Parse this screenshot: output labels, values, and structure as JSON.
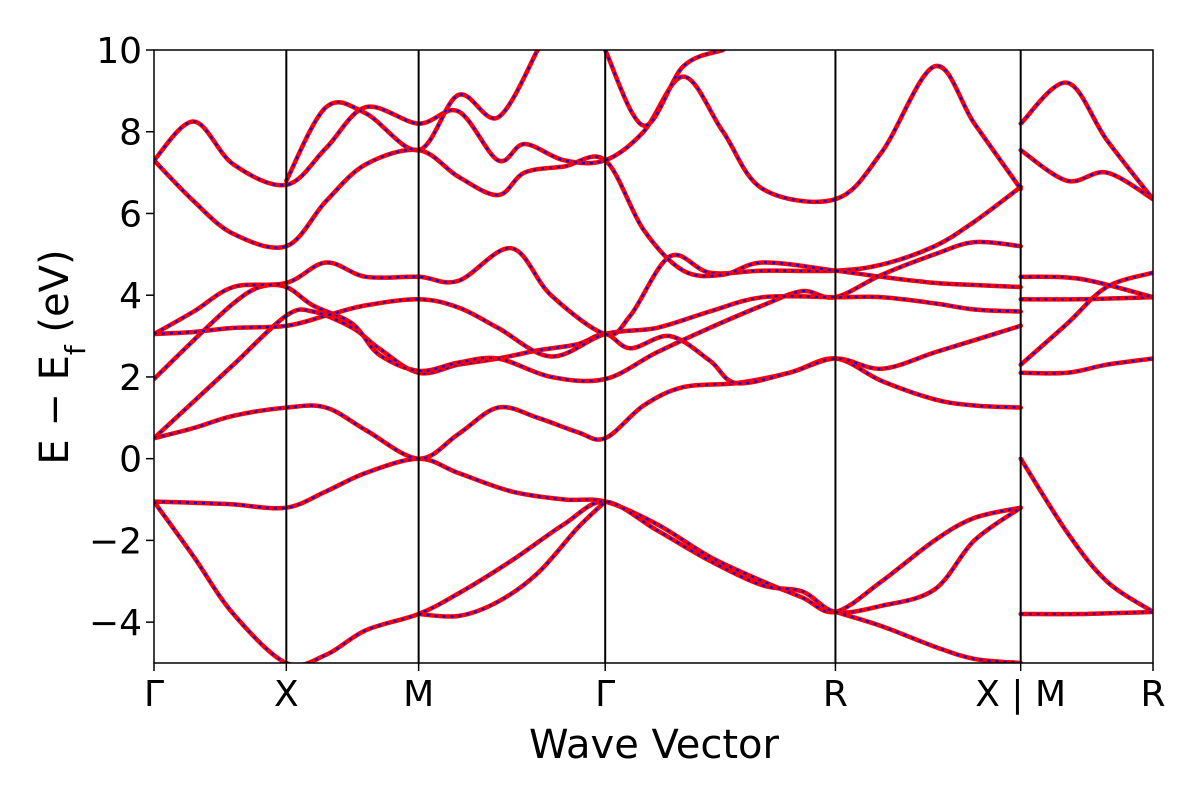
{
  "chart_data": {
    "type": "line",
    "title": "",
    "xlabel": "Wave Vector",
    "ylabel_parts": {
      "main": "E − E",
      "subscript": "f",
      "unit": " (eV)"
    },
    "ylim": [
      -5,
      10
    ],
    "yticks": [
      -4,
      -2,
      0,
      2,
      4,
      6,
      8,
      10
    ],
    "ytick_labels": [
      "−4",
      "−2",
      "0",
      "2",
      "4",
      "6",
      "8",
      "10"
    ],
    "xlim": [
      0,
      7.55
    ],
    "kpoints": [
      {
        "label": "Γ",
        "x": 0
      },
      {
        "label": "X",
        "x": 1.0
      },
      {
        "label": "M",
        "x": 2.0
      },
      {
        "label": "Γ",
        "x": 3.41
      },
      {
        "label": "R",
        "x": 5.15
      },
      {
        "label": "X | M",
        "x": 6.55
      },
      {
        "label": "R",
        "x": 7.55
      }
    ],
    "grid": false,
    "legend": "none",
    "colors": {
      "dft": "#0000ff",
      "fit": "#ff0000",
      "axes": "#000000"
    },
    "series_style": "blue dashed curves overlaid by red solid curves (identical bands)",
    "bands": [
      [
        [
          0,
          -1.05
        ],
        [
          0.3,
          -1.08
        ],
        [
          0.6,
          -1.12
        ],
        [
          1.0,
          -1.2
        ],
        [
          1.3,
          -0.8
        ],
        [
          1.6,
          -0.35
        ],
        [
          2.0,
          0.0
        ],
        [
          2.3,
          -0.35
        ],
        [
          2.7,
          -0.8
        ],
        [
          3.1,
          -1.0
        ],
        [
          3.41,
          -1.05
        ],
        [
          3.8,
          -1.6
        ],
        [
          4.2,
          -2.4
        ],
        [
          4.6,
          -3.0
        ],
        [
          4.9,
          -3.4
        ],
        [
          5.15,
          -3.75
        ],
        [
          5.5,
          -3.0
        ],
        [
          5.9,
          -2.0
        ],
        [
          6.2,
          -1.45
        ],
        [
          6.55,
          -1.2
        ]
      ],
      [
        [
          0,
          -1.05
        ],
        [
          0.3,
          -2.4
        ],
        [
          0.6,
          -3.8
        ],
        [
          1.0,
          -5.0
        ],
        [
          1.3,
          -4.8
        ],
        [
          1.6,
          -4.2
        ],
        [
          2.0,
          -3.8
        ],
        [
          2.3,
          -3.3
        ],
        [
          2.7,
          -2.5
        ],
        [
          3.1,
          -1.6
        ],
        [
          3.41,
          -1.05
        ],
        [
          3.8,
          -1.75
        ],
        [
          4.2,
          -2.5
        ],
        [
          4.6,
          -3.1
        ],
        [
          4.9,
          -3.25
        ],
        [
          5.15,
          -3.75
        ],
        [
          5.5,
          -3.6
        ],
        [
          5.9,
          -3.2
        ],
        [
          6.2,
          -2.0
        ],
        [
          6.55,
          -1.2
        ]
      ],
      [
        [
          2.0,
          -3.8
        ],
        [
          2.3,
          -3.85
        ],
        [
          2.6,
          -3.5
        ],
        [
          2.9,
          -2.8
        ],
        [
          3.2,
          -1.7
        ],
        [
          3.41,
          -1.05
        ]
      ],
      [
        [
          5.15,
          -3.75
        ],
        [
          5.5,
          -4.1
        ],
        [
          5.9,
          -4.6
        ],
        [
          6.2,
          -4.9
        ],
        [
          6.55,
          -5.0
        ]
      ],
      [
        [
          0,
          0.5
        ],
        [
          0.3,
          0.75
        ],
        [
          0.6,
          1.05
        ],
        [
          1.0,
          1.25
        ],
        [
          1.3,
          1.25
        ],
        [
          1.6,
          0.7
        ],
        [
          2.0,
          0.0
        ],
        [
          2.3,
          0.6
        ],
        [
          2.6,
          1.25
        ],
        [
          2.9,
          1.0
        ],
        [
          3.2,
          0.65
        ],
        [
          3.41,
          0.5
        ],
        [
          3.7,
          1.3
        ],
        [
          4.0,
          1.75
        ],
        [
          4.4,
          1.85
        ],
        [
          4.8,
          2.1
        ],
        [
          5.15,
          2.45
        ],
        [
          5.5,
          1.9
        ],
        [
          5.9,
          1.45
        ],
        [
          6.2,
          1.3
        ],
        [
          6.55,
          1.25
        ]
      ],
      [
        [
          0,
          0.5
        ],
        [
          0.3,
          1.4
        ],
        [
          0.6,
          2.3
        ],
        [
          1.0,
          3.5
        ],
        [
          1.2,
          3.6
        ],
        [
          1.5,
          3.2
        ],
        [
          1.7,
          2.7
        ],
        [
          2.0,
          2.1
        ],
        [
          2.3,
          2.3
        ],
        [
          2.6,
          2.45
        ],
        [
          2.9,
          2.65
        ],
        [
          3.2,
          2.8
        ],
        [
          3.41,
          3.05
        ],
        [
          3.6,
          2.7
        ],
        [
          3.9,
          3.0
        ],
        [
          4.2,
          2.4
        ],
        [
          4.4,
          1.85
        ],
        [
          4.8,
          2.1
        ],
        [
          5.15,
          2.45
        ],
        [
          5.5,
          2.2
        ],
        [
          5.9,
          2.6
        ],
        [
          6.2,
          2.9
        ],
        [
          6.55,
          3.25
        ]
      ],
      [
        [
          0,
          1.95
        ],
        [
          0.3,
          2.9
        ],
        [
          0.6,
          3.8
        ],
        [
          0.8,
          4.2
        ],
        [
          1.0,
          4.2
        ],
        [
          1.2,
          3.75
        ],
        [
          1.5,
          3.3
        ],
        [
          1.7,
          2.55
        ],
        [
          2.0,
          2.15
        ],
        [
          2.3,
          2.35
        ],
        [
          2.6,
          2.45
        ],
        [
          3.0,
          2.0
        ],
        [
          3.41,
          1.95
        ],
        [
          3.8,
          2.6
        ],
        [
          4.2,
          3.2
        ],
        [
          4.6,
          3.75
        ],
        [
          4.9,
          4.1
        ],
        [
          5.15,
          3.95
        ],
        [
          5.5,
          4.5
        ],
        [
          5.9,
          5.0
        ],
        [
          6.2,
          5.3
        ],
        [
          6.55,
          5.2
        ]
      ],
      [
        [
          0,
          3.05
        ],
        [
          0.3,
          3.1
        ],
        [
          0.6,
          3.2
        ],
        [
          1.0,
          3.25
        ],
        [
          1.3,
          3.5
        ],
        [
          1.6,
          3.75
        ],
        [
          2.0,
          3.9
        ],
        [
          2.3,
          3.7
        ],
        [
          2.6,
          3.2
        ],
        [
          3.0,
          2.5
        ],
        [
          3.41,
          3.05
        ],
        [
          3.8,
          3.2
        ],
        [
          4.2,
          3.6
        ],
        [
          4.6,
          3.95
        ],
        [
          5.15,
          3.95
        ],
        [
          5.5,
          3.95
        ],
        [
          5.9,
          3.8
        ],
        [
          6.2,
          3.65
        ],
        [
          6.55,
          3.6
        ]
      ],
      [
        [
          0,
          3.05
        ],
        [
          0.3,
          3.6
        ],
        [
          0.6,
          4.2
        ],
        [
          1.0,
          4.3
        ],
        [
          1.3,
          4.8
        ],
        [
          1.6,
          4.45
        ],
        [
          2.0,
          4.45
        ],
        [
          2.3,
          4.35
        ],
        [
          2.7,
          5.15
        ],
        [
          3.0,
          4.0
        ],
        [
          3.41,
          3.05
        ],
        [
          3.6,
          3.5
        ],
        [
          3.9,
          4.95
        ],
        [
          4.2,
          4.55
        ],
        [
          4.6,
          4.6
        ],
        [
          5.15,
          4.6
        ],
        [
          5.5,
          4.75
        ],
        [
          5.9,
          5.2
        ],
        [
          6.2,
          5.8
        ],
        [
          6.55,
          6.65
        ]
      ],
      [
        [
          0,
          7.3
        ],
        [
          0.3,
          6.3
        ],
        [
          0.6,
          5.5
        ],
        [
          1.0,
          5.2
        ],
        [
          1.3,
          6.3
        ],
        [
          1.6,
          7.2
        ],
        [
          2.0,
          7.55
        ],
        [
          2.3,
          6.9
        ],
        [
          2.6,
          6.45
        ],
        [
          2.8,
          7.0
        ],
        [
          3.1,
          7.15
        ],
        [
          3.41,
          7.3
        ],
        [
          3.7,
          5.6
        ],
        [
          4.0,
          4.6
        ],
        [
          4.3,
          4.5
        ],
        [
          4.6,
          4.8
        ],
        [
          5.15,
          4.6
        ],
        [
          5.5,
          4.45
        ],
        [
          5.9,
          4.3
        ],
        [
          6.2,
          4.25
        ],
        [
          6.55,
          4.2
        ]
      ],
      [
        [
          0,
          7.3
        ],
        [
          0.3,
          8.25
        ],
        [
          0.6,
          7.2
        ],
        [
          1.0,
          6.7
        ],
        [
          1.3,
          7.6
        ],
        [
          1.6,
          8.6
        ],
        [
          2.0,
          8.2
        ],
        [
          2.3,
          8.5
        ],
        [
          2.6,
          7.3
        ],
        [
          2.8,
          7.7
        ],
        [
          3.1,
          7.3
        ],
        [
          3.41,
          7.3
        ],
        [
          3.7,
          8.0
        ],
        [
          4.0,
          9.35
        ],
        [
          4.3,
          8.0
        ],
        [
          4.6,
          6.6
        ],
        [
          5.15,
          6.35
        ],
        [
          5.5,
          7.5
        ],
        [
          5.9,
          9.6
        ],
        [
          6.2,
          8.2
        ],
        [
          6.55,
          6.6
        ]
      ],
      [
        [
          1.0,
          6.8
        ],
        [
          1.3,
          8.6
        ],
        [
          1.6,
          8.45
        ],
        [
          2.0,
          7.55
        ],
        [
          2.3,
          8.9
        ],
        [
          2.6,
          8.35
        ],
        [
          2.9,
          10.0
        ]
      ],
      [
        [
          3.41,
          10.0
        ],
        [
          3.7,
          8.15
        ],
        [
          4.0,
          9.6
        ],
        [
          4.3,
          10.0
        ]
      ],
      [
        [
          6.55,
          2.1
        ],
        [
          6.9,
          2.1
        ],
        [
          7.2,
          2.3
        ],
        [
          7.55,
          2.45
        ]
      ],
      [
        [
          6.55,
          0.0
        ],
        [
          6.9,
          -1.8
        ],
        [
          7.2,
          -3.0
        ],
        [
          7.55,
          -3.75
        ]
      ],
      [
        [
          6.55,
          -3.8
        ],
        [
          7.0,
          -3.8
        ],
        [
          7.55,
          -3.75
        ]
      ],
      [
        [
          6.55,
          2.3
        ],
        [
          6.9,
          3.3
        ],
        [
          7.2,
          4.2
        ],
        [
          7.55,
          4.55
        ]
      ],
      [
        [
          6.55,
          3.9
        ],
        [
          7.0,
          3.9
        ],
        [
          7.55,
          3.95
        ]
      ],
      [
        [
          6.55,
          4.45
        ],
        [
          7.0,
          4.4
        ],
        [
          7.55,
          3.95
        ]
      ],
      [
        [
          6.55,
          7.55
        ],
        [
          6.9,
          6.8
        ],
        [
          7.2,
          7.0
        ],
        [
          7.55,
          6.35
        ]
      ],
      [
        [
          6.55,
          8.2
        ],
        [
          6.9,
          9.2
        ],
        [
          7.2,
          7.8
        ],
        [
          7.55,
          6.35
        ]
      ]
    ]
  }
}
